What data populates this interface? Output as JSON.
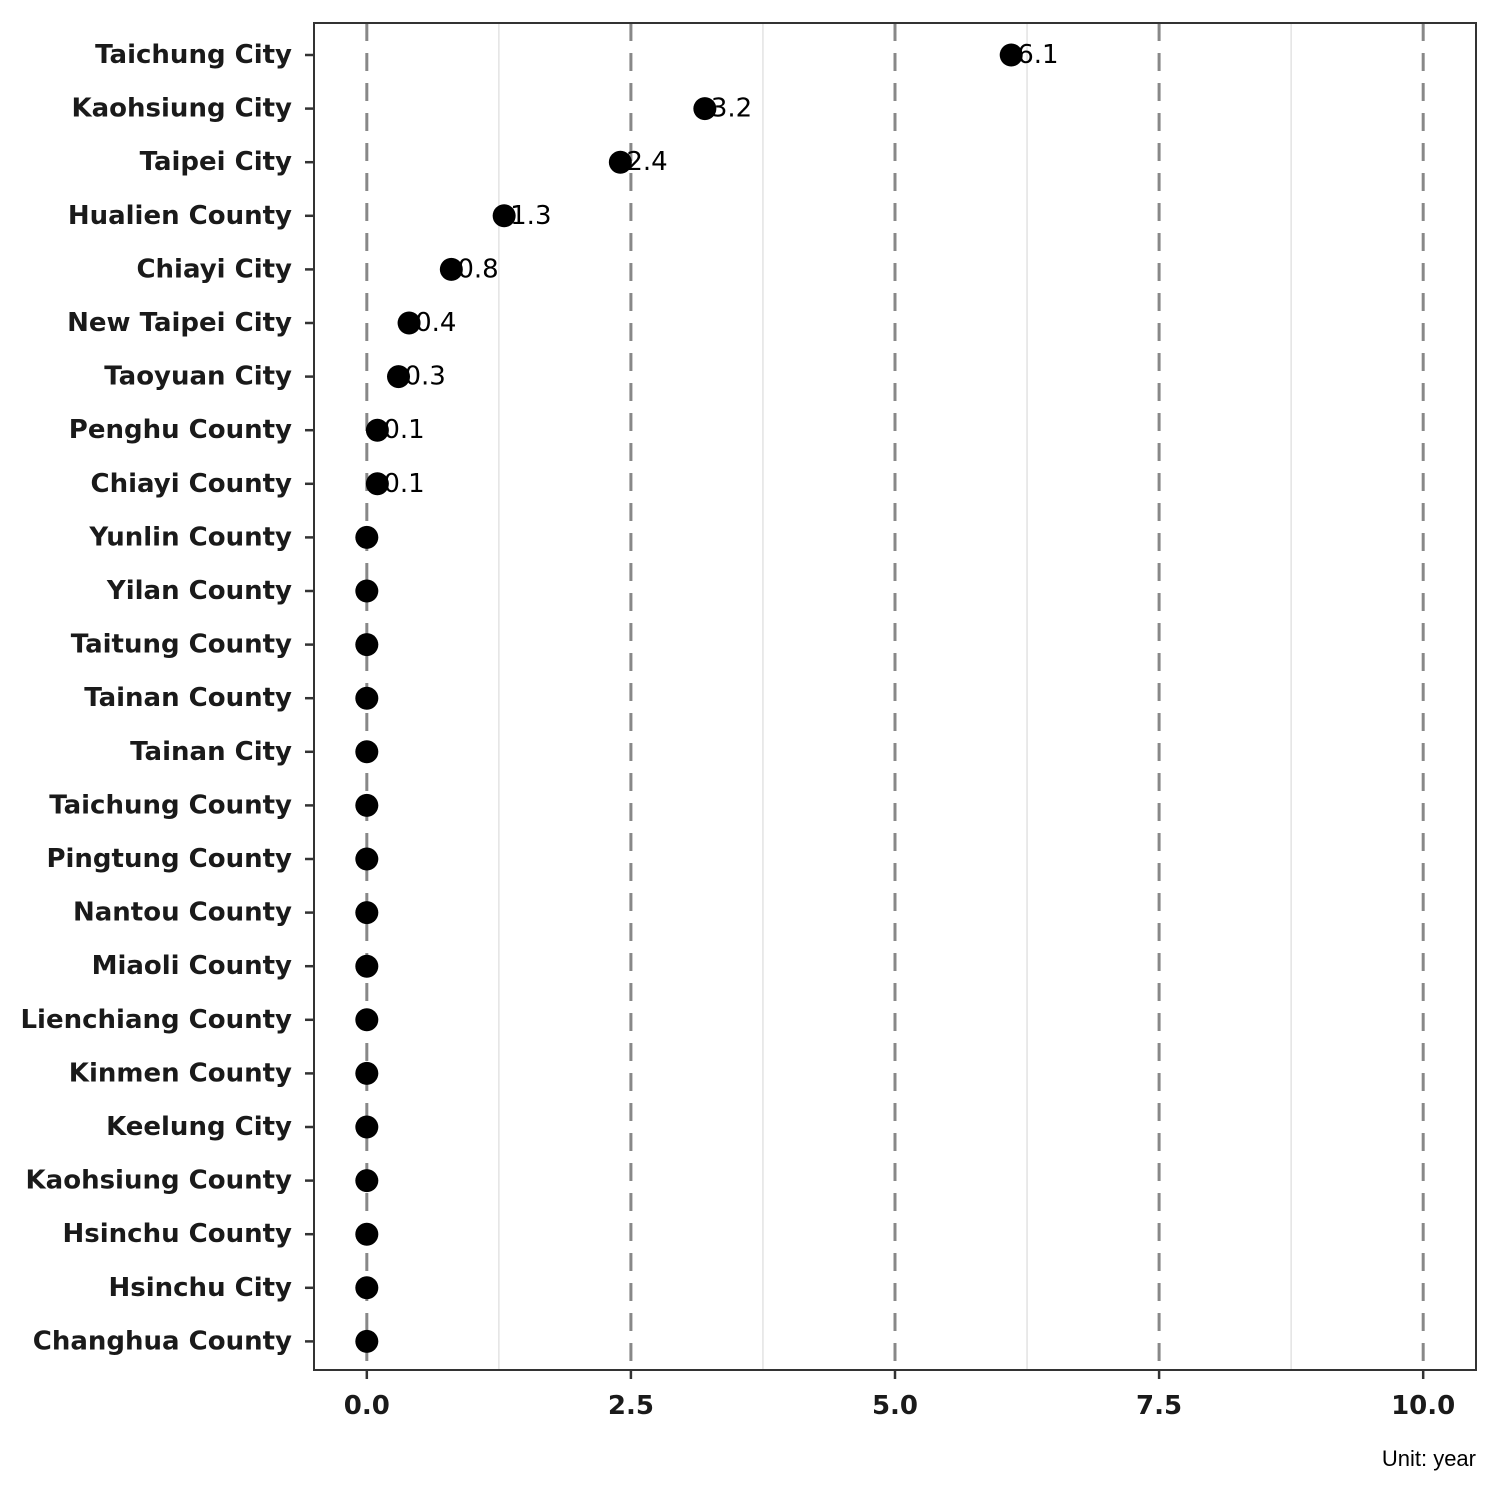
{
  "chart_data": {
    "type": "scatter",
    "orientation": "horizontal-dot",
    "categories": [
      "Taichung City",
      "Kaohsiung City",
      "Taipei City",
      "Hualien County",
      "Chiayi City",
      "New Taipei City",
      "Taoyuan City",
      "Penghu County",
      "Chiayi County",
      "Yunlin County",
      "Yilan County",
      "Taitung County",
      "Tainan County",
      "Tainan City",
      "Taichung County",
      "Pingtung County",
      "Nantou County",
      "Miaoli County",
      "Lienchiang County",
      "Kinmen County",
      "Keelung City",
      "Kaohsiung County",
      "Hsinchu County",
      "Hsinchu City",
      "Changhua County"
    ],
    "values": [
      6.1,
      3.2,
      2.4,
      1.3,
      0.8,
      0.4,
      0.3,
      0.1,
      0.1,
      0,
      0,
      0,
      0,
      0,
      0,
      0,
      0,
      0,
      0,
      0,
      0,
      0,
      0,
      0,
      0
    ],
    "data_labels": [
      "6.1",
      "3.2",
      "2.4",
      "1.3",
      "0.8",
      "0.4",
      "0.3",
      "0.1",
      "0.1",
      "",
      "",
      "",
      "",
      "",
      "",
      "",
      "",
      "",
      "",
      "",
      "",
      "",
      "",
      "",
      ""
    ],
    "xlim": [
      -0.5,
      10.5
    ],
    "x_ticks": [
      "0.0",
      "2.5",
      "5.0",
      "7.5",
      "10.0"
    ],
    "x_tick_values": [
      0,
      2.5,
      5,
      7.5,
      10
    ],
    "minor_gridlines": [
      1.25,
      3.75,
      6.25,
      8.75
    ],
    "reference_lines": [
      0,
      2.5,
      5,
      7.5,
      10
    ],
    "reference_line_style": "dashed",
    "caption": "Unit: year",
    "title": "",
    "xlabel": "",
    "ylabel": "",
    "grid": true,
    "legend": "none",
    "colors": {
      "point": "#000000",
      "reference_line": "#888888",
      "minor_grid": "#e3e3e3",
      "frame": "#333333"
    }
  }
}
